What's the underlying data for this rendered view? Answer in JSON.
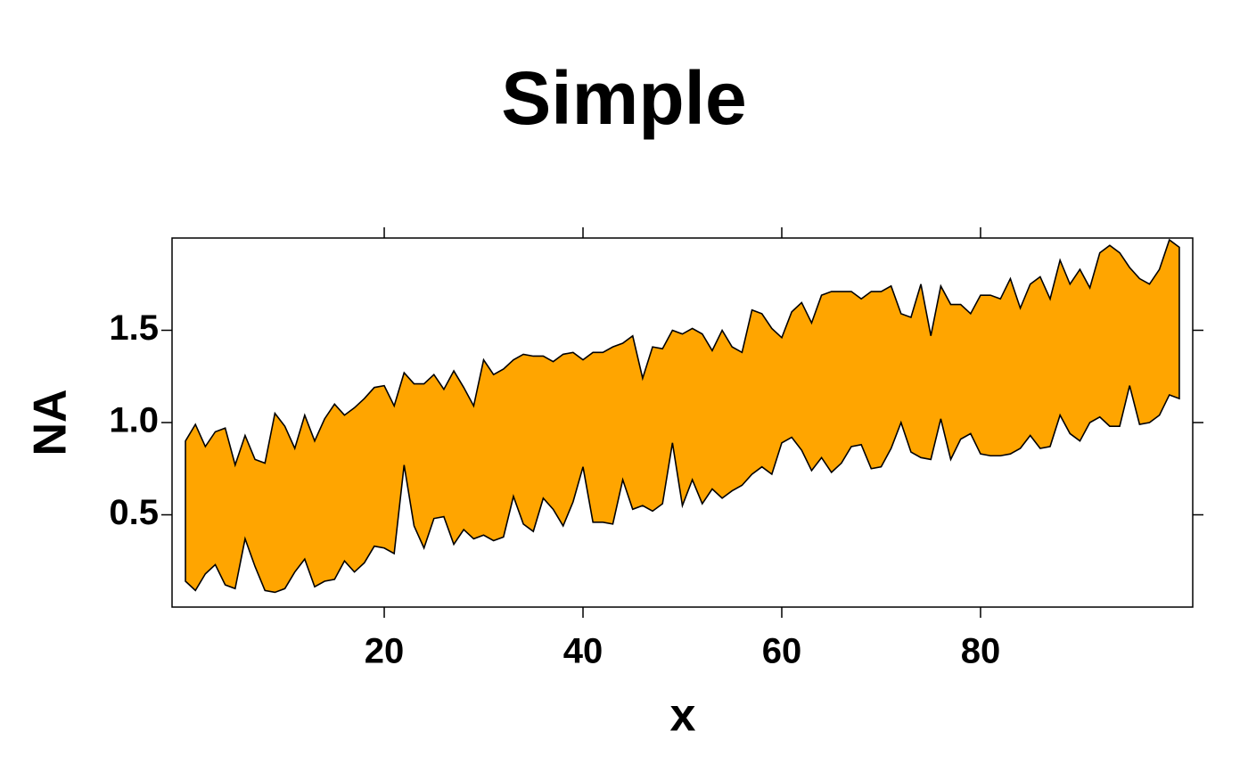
{
  "chart_data": {
    "type": "ribbon",
    "title": "Simple",
    "x_label": "x",
    "y_label": "NA",
    "color": "#FFA500",
    "x": [
      0,
      1,
      2,
      3,
      4,
      5,
      6,
      7,
      8,
      9,
      10,
      11,
      12,
      13,
      14,
      15,
      16,
      17,
      18,
      19,
      20,
      21,
      22,
      23,
      24,
      25,
      26,
      27,
      28,
      29,
      30,
      31,
      32,
      33,
      34,
      35,
      36,
      37,
      38,
      39,
      40,
      41,
      42,
      43,
      44,
      45,
      46,
      47,
      48,
      49,
      50,
      51,
      52,
      53,
      54,
      55,
      56,
      57,
      58,
      59,
      60,
      61,
      62,
      63,
      64,
      65,
      66,
      67,
      68,
      69,
      70,
      71,
      72,
      73,
      74,
      75,
      76,
      77,
      78,
      79,
      80,
      81,
      82,
      83,
      84,
      85,
      86,
      87,
      88,
      89,
      90,
      91,
      92,
      93,
      94,
      95,
      96,
      97,
      98,
      99,
      100
    ],
    "upper": [
      0.9,
      0.99,
      0.87,
      0.95,
      0.97,
      0.77,
      0.93,
      0.8,
      0.78,
      1.05,
      0.98,
      0.86,
      1.04,
      0.9,
      1.02,
      1.1,
      1.04,
      1.08,
      1.13,
      1.19,
      1.2,
      1.09,
      1.27,
      1.21,
      1.21,
      1.26,
      1.18,
      1.28,
      1.19,
      1.09,
      1.34,
      1.26,
      1.29,
      1.34,
      1.37,
      1.36,
      1.36,
      1.33,
      1.37,
      1.38,
      1.34,
      1.38,
      1.38,
      1.41,
      1.43,
      1.47,
      1.24,
      1.41,
      1.4,
      1.5,
      1.48,
      1.51,
      1.48,
      1.39,
      1.5,
      1.41,
      1.38,
      1.61,
      1.59,
      1.51,
      1.46,
      1.6,
      1.65,
      1.54,
      1.69,
      1.71,
      1.71,
      1.71,
      1.67,
      1.71,
      1.71,
      1.74,
      1.59,
      1.57,
      1.75,
      1.47,
      1.74,
      1.64,
      1.64,
      1.59,
      1.69,
      1.69,
      1.67,
      1.78,
      1.62,
      1.75,
      1.79,
      1.67,
      1.88,
      1.75,
      1.83,
      1.73,
      1.92,
      1.96,
      1.92,
      1.84,
      1.78,
      1.75,
      1.83,
      1.99,
      1.95
    ],
    "lower": [
      0.14,
      0.09,
      0.18,
      0.23,
      0.12,
      0.1,
      0.37,
      0.22,
      0.09,
      0.08,
      0.1,
      0.19,
      0.26,
      0.11,
      0.14,
      0.15,
      0.25,
      0.19,
      0.24,
      0.33,
      0.32,
      0.29,
      0.77,
      0.44,
      0.32,
      0.48,
      0.49,
      0.34,
      0.42,
      0.37,
      0.39,
      0.36,
      0.38,
      0.6,
      0.45,
      0.41,
      0.59,
      0.53,
      0.44,
      0.57,
      0.76,
      0.46,
      0.46,
      0.45,
      0.69,
      0.53,
      0.55,
      0.52,
      0.56,
      0.89,
      0.55,
      0.69,
      0.56,
      0.64,
      0.59,
      0.63,
      0.66,
      0.72,
      0.76,
      0.72,
      0.89,
      0.92,
      0.85,
      0.74,
      0.81,
      0.73,
      0.78,
      0.87,
      0.88,
      0.75,
      0.76,
      0.86,
      1.0,
      0.84,
      0.81,
      0.8,
      1.02,
      0.8,
      0.91,
      0.94,
      0.83,
      0.82,
      0.82,
      0.83,
      0.86,
      0.93,
      0.86,
      0.87,
      1.04,
      0.94,
      0.9,
      1.0,
      1.03,
      0.98,
      0.98,
      1.2,
      0.99,
      1.0,
      1.04,
      1.15,
      1.13
    ],
    "xlim": [
      -1.35,
      101.35
    ],
    "ylim": [
      0,
      2
    ],
    "xticks": [
      20,
      40,
      60,
      80
    ],
    "yticks": [
      0.5,
      {
        "value": 1,
        "label": "1.0"
      },
      1.5
    ]
  }
}
